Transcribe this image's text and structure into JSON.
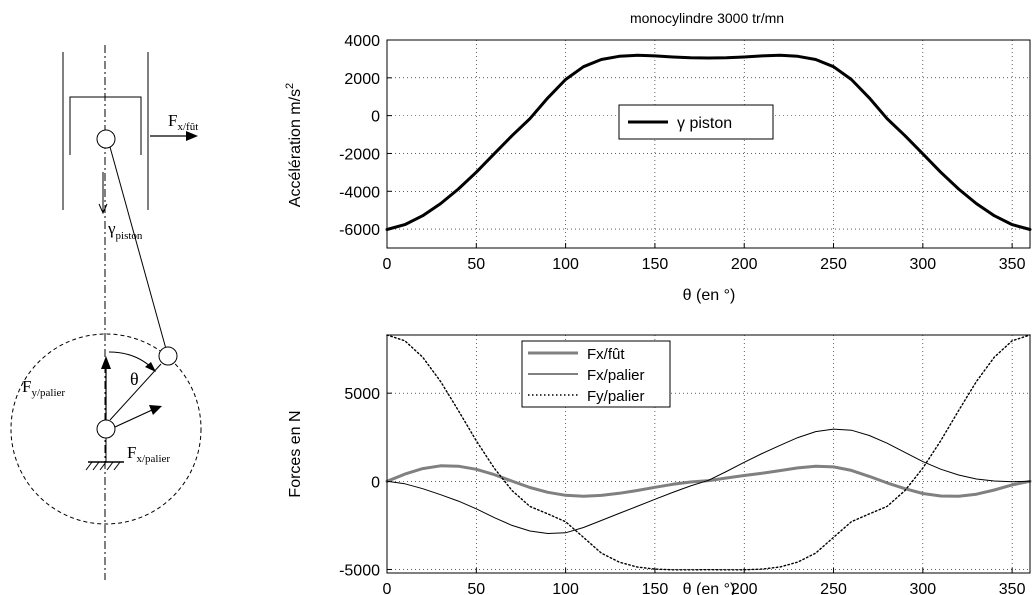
{
  "diagram": {
    "label_fx_fut": "F",
    "label_fx_fut_sub": "x/fût",
    "label_gamma": "γ",
    "label_gamma_sub": "piston",
    "label_theta": "θ",
    "label_fy_palier": "F",
    "label_fy_palier_sub": "y/palier",
    "label_fx_palier": "F",
    "label_fx_palier_sub": "x/palier"
  },
  "chart_data": [
    {
      "type": "line",
      "title": "monocylindre 3000 tr/mn",
      "xlabel": "θ (en °)",
      "ylabel": "Accélération m/s",
      "ylabel_sup": "2",
      "xlim": [
        0,
        360
      ],
      "ylim": [
        -7000,
        4000
      ],
      "xticks": [
        0,
        50,
        100,
        150,
        200,
        250,
        300,
        350
      ],
      "yticks": [
        -6000,
        -4000,
        -2000,
        0,
        2000,
        4000
      ],
      "grid": true,
      "legend_position": "center",
      "series": [
        {
          "name": "γ piston",
          "style": "solid-thick",
          "color": "#000000",
          "x": [
            0,
            10,
            20,
            30,
            40,
            50,
            60,
            70,
            80,
            90,
            100,
            110,
            120,
            130,
            140,
            150,
            160,
            170,
            180,
            190,
            200,
            210,
            220,
            230,
            240,
            250,
            260,
            270,
            280,
            290,
            300,
            310,
            320,
            330,
            340,
            350,
            360
          ],
          "values": [
            -6020,
            -5760,
            -5290,
            -4650,
            -3880,
            -2990,
            -2020,
            -1060,
            -160,
            940,
            1910,
            2590,
            2970,
            3140,
            3190,
            3160,
            3100,
            3060,
            3050,
            3060,
            3100,
            3160,
            3190,
            3140,
            2970,
            2590,
            1910,
            940,
            -160,
            -1060,
            -2020,
            -2990,
            -3880,
            -4650,
            -5290,
            -5760,
            -6020
          ]
        }
      ]
    },
    {
      "type": "line",
      "title": "",
      "xlabel": "θ (en °)",
      "ylabel": "Forces en N",
      "xlim": [
        0,
        360
      ],
      "ylim": [
        -5200,
        8300
      ],
      "xticks": [
        0,
        50,
        100,
        150,
        200,
        250,
        300,
        350
      ],
      "yticks": [
        -5000,
        0,
        5000
      ],
      "grid": true,
      "legend_position": "top-left",
      "series": [
        {
          "name": "Fx/fût",
          "style": "solid-thick",
          "color": "#808080",
          "x": [
            0,
            10,
            20,
            30,
            40,
            50,
            60,
            70,
            80,
            90,
            100,
            110,
            120,
            130,
            140,
            150,
            160,
            170,
            180,
            190,
            200,
            210,
            220,
            230,
            240,
            250,
            260,
            270,
            280,
            290,
            300,
            310,
            320,
            330,
            340,
            350,
            360
          ],
          "values": [
            0,
            410,
            720,
            880,
            860,
            680,
            380,
            10,
            -350,
            -620,
            -790,
            -850,
            -800,
            -680,
            -520,
            -340,
            -170,
            -40,
            40,
            190,
            330,
            460,
            610,
            760,
            850,
            820,
            620,
            280,
            -90,
            -420,
            -690,
            -830,
            -850,
            -730,
            -490,
            -200,
            0
          ]
        },
        {
          "name": "Fx/palier",
          "style": "solid-thin",
          "color": "#000000",
          "x": [
            0,
            10,
            20,
            30,
            40,
            50,
            60,
            70,
            80,
            90,
            100,
            110,
            120,
            130,
            140,
            150,
            160,
            170,
            180,
            190,
            200,
            210,
            220,
            230,
            240,
            250,
            260,
            270,
            280,
            290,
            300,
            310,
            320,
            330,
            340,
            350,
            360
          ],
          "values": [
            0,
            -140,
            -420,
            -760,
            -1120,
            -1560,
            -2060,
            -2500,
            -2820,
            -2960,
            -2920,
            -2620,
            -2220,
            -1820,
            -1420,
            -1020,
            -630,
            -260,
            60,
            560,
            1080,
            1580,
            2040,
            2480,
            2820,
            2960,
            2900,
            2600,
            2160,
            1640,
            1120,
            690,
            360,
            130,
            20,
            -20,
            0
          ]
        },
        {
          "name": "Fy/palier",
          "style": "dotted",
          "color": "#000000",
          "x": [
            0,
            10,
            20,
            30,
            40,
            50,
            60,
            70,
            80,
            90,
            100,
            110,
            120,
            130,
            140,
            150,
            160,
            170,
            180,
            190,
            200,
            210,
            220,
            230,
            240,
            250,
            260,
            270,
            280,
            290,
            300,
            310,
            320,
            330,
            340,
            350,
            360
          ],
          "values": [
            8300,
            7970,
            7040,
            5660,
            4010,
            2300,
            750,
            -520,
            -1420,
            -1850,
            -2290,
            -3180,
            -4070,
            -4580,
            -4860,
            -4980,
            -5020,
            -5020,
            -5010,
            -5020,
            -5020,
            -4980,
            -4860,
            -4580,
            -4070,
            -3180,
            -2290,
            -1850,
            -1420,
            -520,
            750,
            2300,
            4010,
            5660,
            7040,
            7970,
            8300
          ]
        }
      ]
    }
  ]
}
